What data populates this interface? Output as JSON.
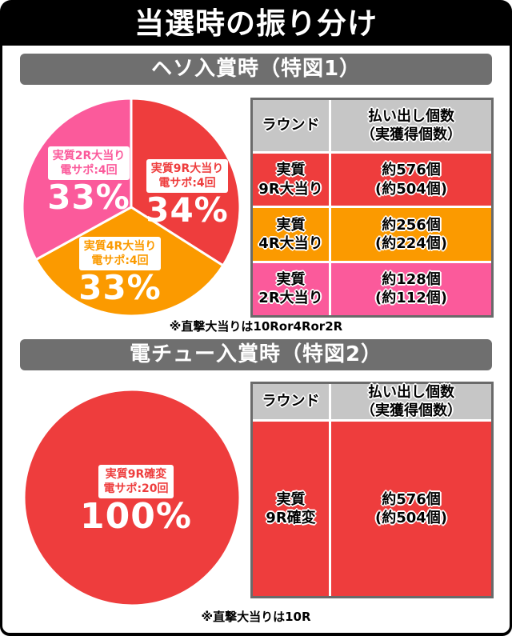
{
  "title": "当選時の振り分け",
  "colors": {
    "red": "#ee3d3d",
    "orange": "#fb9a00",
    "pink": "#fb5a9b",
    "frame_black": "#000000",
    "section_header_gray": "#6f6f6f",
    "table_header_gray": "#c6c6c6",
    "table_border_gray": "#6a6a6a"
  },
  "sections": [
    {
      "header": "ヘソ入賞時（特図1）",
      "note": "※直撃大当りは10Ror4Ror2R",
      "table": {
        "headers": {
          "round": "ラウンド",
          "payout_line1": "払い出し個数",
          "payout_line2": "（実獲得個数）"
        },
        "rows": [
          {
            "round_line1": "実質",
            "round_line2": "9R大当り",
            "payout_line1": "約576個",
            "payout_line2": "(約504個)",
            "color": "#ee3d3d"
          },
          {
            "round_line1": "実質",
            "round_line2": "4R大当り",
            "payout_line1": "約256個",
            "payout_line2": "(約224個)",
            "color": "#fb9a00"
          },
          {
            "round_line1": "実質",
            "round_line2": "2R大当り",
            "payout_line1": "約128個",
            "payout_line2": "(約112個)",
            "color": "#fb5a9b"
          }
        ]
      }
    },
    {
      "header": "電チュー入賞時（特図2）",
      "note": "※直撃大当りは10R",
      "table": {
        "headers": {
          "round": "ラウンド",
          "payout_line1": "払い出し個数",
          "payout_line2": "（実獲得個数）"
        },
        "rows": [
          {
            "round_line1": "実質",
            "round_line2": "9R確変",
            "payout_line1": "約576個",
            "payout_line2": "(約504個)",
            "color": "#ee3d3d"
          }
        ]
      }
    }
  ],
  "chart_data": [
    {
      "type": "pie",
      "title": "ヘソ入賞時（特図1）",
      "start_angle_deg": 0,
      "direction": "clockwise",
      "legend": "none",
      "slices": [
        {
          "label": "実質9R大当り",
          "sub_label": "電サポ:4回",
          "value": 34,
          "value_label": "34%",
          "color": "#ee3d3d"
        },
        {
          "label": "実質4R大当り",
          "sub_label": "電サポ:4回",
          "value": 33,
          "value_label": "33%",
          "color": "#fb9a00"
        },
        {
          "label": "実質2R大当り",
          "sub_label": "電サポ:4回",
          "value": 33,
          "value_label": "33%",
          "color": "#fb5a9b"
        }
      ]
    },
    {
      "type": "pie",
      "title": "電チュー入賞時（特図2）",
      "start_angle_deg": 0,
      "direction": "clockwise",
      "legend": "none",
      "slices": [
        {
          "label": "実質9R確変",
          "sub_label": "電サポ:20回",
          "value": 100,
          "value_label": "100%",
          "color": "#ee3d3d"
        }
      ]
    }
  ]
}
